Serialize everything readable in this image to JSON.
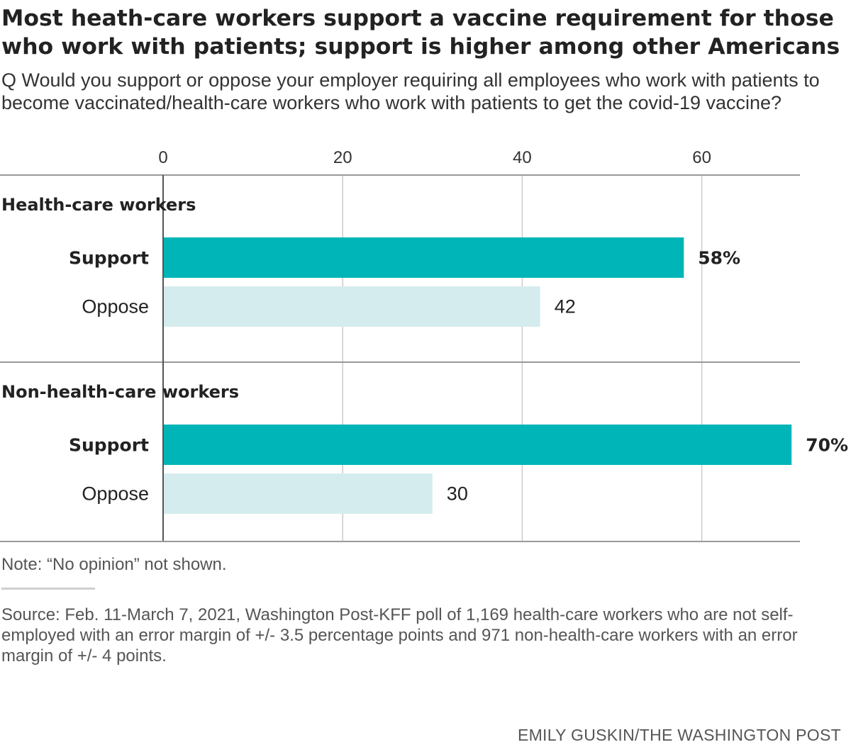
{
  "title": "Most heath-care workers support a vaccine requirement for those who work with patients; support is higher among other Americans",
  "subtitle": "Q Would you support or oppose your employer requiring all employees who work with patients to become vaccinated/health-care workers who work with patients to get the covid-19 vaccine?",
  "note": "Note: “No opinion” not shown.",
  "source": "Source: Feb. 11-March 7, 2021, Washington Post-KFF poll of 1,169 health-care workers who are not self-employed with an error margin of +/- 3.5 percentage points and 971 non-health-care workers with an error margin of +/- 4 points.",
  "credit": "EMILY GUSKIN/THE WASHINGTON POST",
  "colors": {
    "support": "#00b5b8",
    "oppose": "#d5ecee",
    "grid": "#cccccc",
    "axis": "#999999",
    "zero_line": "#555555"
  },
  "chart_data": {
    "type": "bar",
    "orientation": "horizontal",
    "xlim": [
      0,
      70
    ],
    "ticks": [
      0,
      20,
      40,
      60
    ],
    "tick_labels": [
      "0",
      "20",
      "40",
      "60"
    ],
    "grid": true,
    "groups": [
      {
        "name": "Health-care workers",
        "bars": [
          {
            "category": "Support",
            "value": 58,
            "label": "58%",
            "emphasis": true
          },
          {
            "category": "Oppose",
            "value": 42,
            "label": "42",
            "emphasis": false
          }
        ]
      },
      {
        "name": "Non-health-care workers",
        "bars": [
          {
            "category": "Support",
            "value": 70,
            "label": "70%",
            "emphasis": true
          },
          {
            "category": "Oppose",
            "value": 30,
            "label": "30",
            "emphasis": false
          }
        ]
      }
    ]
  }
}
